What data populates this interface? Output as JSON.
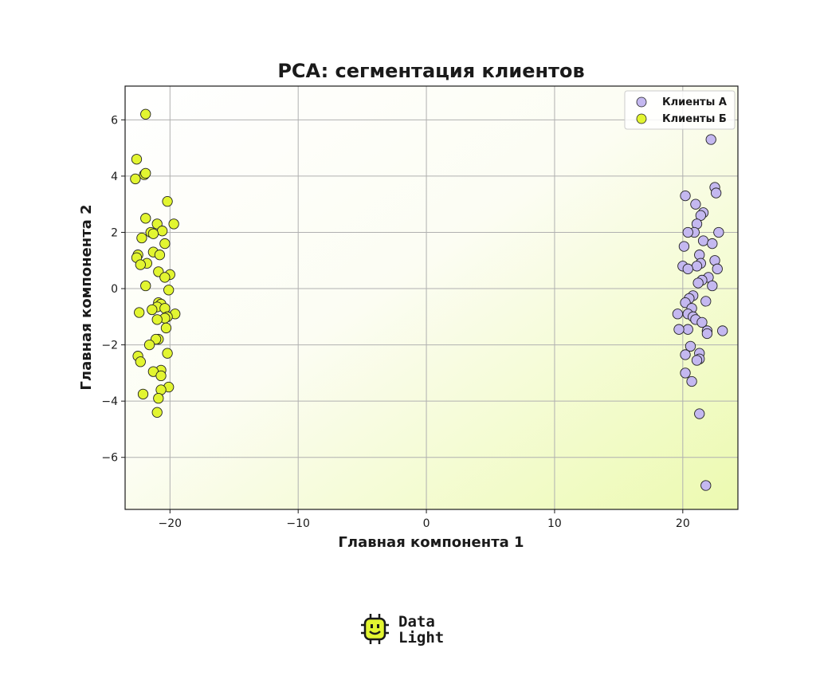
{
  "chart_data": {
    "type": "scatter",
    "title": "PCA: сегментация клиентов",
    "xlabel": "Главная компонента 1",
    "ylabel": "Главная компонента 2",
    "xlim": [
      -23.5,
      24.3
    ],
    "ylim": [
      -7.85,
      7.2
    ],
    "xticks": [
      -20,
      -10,
      0,
      10,
      20
    ],
    "xtick_labels": [
      "−20",
      "−10",
      "0",
      "10",
      "20"
    ],
    "yticks": [
      -6,
      -4,
      -2,
      0,
      2,
      4,
      6
    ],
    "ytick_labels": [
      "−6",
      "−4",
      "−2",
      "0",
      "2",
      "4",
      "6"
    ],
    "grid": true,
    "legend_position": "top-right",
    "background": "gradient white to light yellow-green",
    "series": [
      {
        "name": "Клиенты А",
        "color": "#c4b8f0",
        "points": [
          [
            22.2,
            5.3
          ],
          [
            22.5,
            3.6
          ],
          [
            22.6,
            3.4
          ],
          [
            20.2,
            3.3
          ],
          [
            21.0,
            3.0
          ],
          [
            21.6,
            2.7
          ],
          [
            21.4,
            2.6
          ],
          [
            21.1,
            2.3
          ],
          [
            20.9,
            2.0
          ],
          [
            22.8,
            2.0
          ],
          [
            20.4,
            2.0
          ],
          [
            21.6,
            1.7
          ],
          [
            22.3,
            1.6
          ],
          [
            20.1,
            1.5
          ],
          [
            21.3,
            1.2
          ],
          [
            22.5,
            1.0
          ],
          [
            20.0,
            0.8
          ],
          [
            21.4,
            0.9
          ],
          [
            21.1,
            0.8
          ],
          [
            20.4,
            0.7
          ],
          [
            22.7,
            0.7
          ],
          [
            22.0,
            0.4
          ],
          [
            21.5,
            0.3
          ],
          [
            21.2,
            0.2
          ],
          [
            22.3,
            0.1
          ],
          [
            20.8,
            -0.25
          ],
          [
            20.5,
            -0.35
          ],
          [
            20.2,
            -0.5
          ],
          [
            21.8,
            -0.45
          ],
          [
            20.7,
            -0.7
          ],
          [
            20.4,
            -0.9
          ],
          [
            19.6,
            -0.9
          ],
          [
            20.8,
            -1.0
          ],
          [
            21.0,
            -1.1
          ],
          [
            21.5,
            -1.2
          ],
          [
            21.9,
            -1.5
          ],
          [
            20.4,
            -1.45
          ],
          [
            19.7,
            -1.45
          ],
          [
            23.1,
            -1.5
          ],
          [
            21.9,
            -1.6
          ],
          [
            20.6,
            -2.05
          ],
          [
            21.3,
            -2.3
          ],
          [
            20.2,
            -2.35
          ],
          [
            21.3,
            -2.5
          ],
          [
            21.1,
            -2.55
          ],
          [
            20.2,
            -3.0
          ],
          [
            20.7,
            -3.3
          ],
          [
            21.3,
            -4.45
          ],
          [
            21.8,
            -7.0
          ]
        ]
      },
      {
        "name": "Клиенты Б",
        "color": "#e2f531",
        "points": [
          [
            -21.9,
            6.2
          ],
          [
            -22.6,
            4.6
          ],
          [
            -22.0,
            4.05
          ],
          [
            -21.9,
            4.1
          ],
          [
            -22.7,
            3.9
          ],
          [
            -20.2,
            3.1
          ],
          [
            -21.9,
            2.5
          ],
          [
            -21.0,
            2.3
          ],
          [
            -19.7,
            2.3
          ],
          [
            -21.5,
            2.0
          ],
          [
            -20.6,
            2.05
          ],
          [
            -21.3,
            1.95
          ],
          [
            -22.2,
            1.8
          ],
          [
            -20.4,
            1.6
          ],
          [
            -21.3,
            1.3
          ],
          [
            -20.8,
            1.2
          ],
          [
            -22.5,
            1.2
          ],
          [
            -22.6,
            1.1
          ],
          [
            -21.8,
            0.9
          ],
          [
            -22.3,
            0.85
          ],
          [
            -20.9,
            0.6
          ],
          [
            -20.0,
            0.5
          ],
          [
            -20.4,
            0.4
          ],
          [
            -21.9,
            0.1
          ],
          [
            -20.1,
            -0.05
          ],
          [
            -20.9,
            -0.5
          ],
          [
            -20.7,
            -0.55
          ],
          [
            -21.0,
            -0.65
          ],
          [
            -20.4,
            -0.7
          ],
          [
            -21.4,
            -0.75
          ],
          [
            -22.4,
            -0.85
          ],
          [
            -19.6,
            -0.9
          ],
          [
            -20.2,
            -1.0
          ],
          [
            -20.4,
            -1.05
          ],
          [
            -21.0,
            -1.1
          ],
          [
            -20.3,
            -1.4
          ],
          [
            -20.9,
            -1.8
          ],
          [
            -21.1,
            -1.8
          ],
          [
            -21.6,
            -2.0
          ],
          [
            -20.2,
            -2.3
          ],
          [
            -22.5,
            -2.4
          ],
          [
            -22.3,
            -2.6
          ],
          [
            -20.7,
            -2.9
          ],
          [
            -21.3,
            -2.95
          ],
          [
            -20.7,
            -3.1
          ],
          [
            -20.1,
            -3.5
          ],
          [
            -20.7,
            -3.6
          ],
          [
            -22.1,
            -3.75
          ],
          [
            -20.9,
            -3.9
          ],
          [
            -21.0,
            -4.4
          ]
        ]
      }
    ]
  },
  "logo": {
    "line1": "Data",
    "line2": "Light",
    "icon": "smiling-chip-icon",
    "accent": "#e2f531"
  }
}
